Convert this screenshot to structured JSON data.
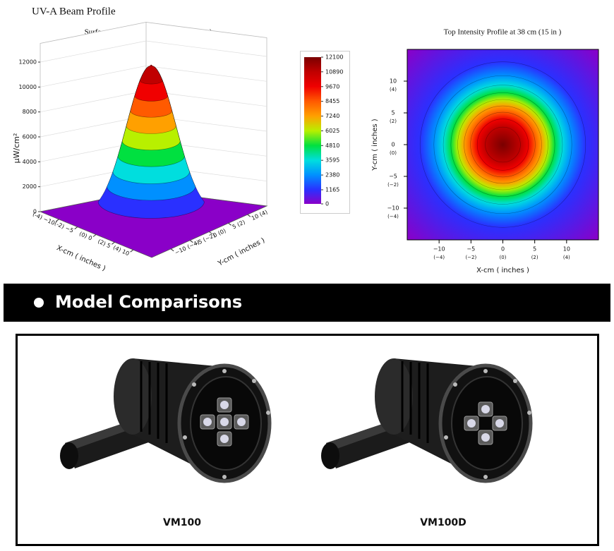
{
  "header": {
    "title": "UV-A Beam Profile"
  },
  "chart_data": [
    {
      "type": "surface",
      "title": "Surface Contour Profile at 38 cm (15 in )",
      "zlabel": "μW/cm²",
      "xlabel": "X-cm ( inches )",
      "ylabel": "Y-cm ( inches )",
      "zlim": [
        0,
        13500
      ],
      "zticks": [
        0,
        2000,
        4000,
        6000,
        8000,
        10000,
        12000
      ],
      "xlim": [
        -15,
        15
      ],
      "ylim": [
        -15,
        15
      ],
      "xticks": [
        {
          "value": -10,
          "label": "(-4) −10"
        },
        {
          "value": -5,
          "label": "(-2) −5"
        },
        {
          "value": 0,
          "label": "(0) 0"
        },
        {
          "value": 5,
          "label": "(2) 5"
        },
        {
          "value": 10,
          "label": "(4) 10"
        }
      ],
      "yticks": [
        {
          "value": -10,
          "label": "−10 (−4)"
        },
        {
          "value": -5,
          "label": "−5 (−2)"
        },
        {
          "value": 0,
          "label": "0 (0)"
        },
        {
          "value": 5,
          "label": "5 (2)"
        },
        {
          "value": 10,
          "label": "10 (4)"
        }
      ],
      "peak": 12100,
      "sigma": 6,
      "colorbar": {
        "levels": [
          0,
          1165,
          2380,
          3595,
          4810,
          6025,
          7240,
          8455,
          9670,
          10890,
          12100
        ],
        "colors": [
          "#8a00c8",
          "#2a30ff",
          "#0090ff",
          "#00dede",
          "#00e040",
          "#b8f000",
          "#ffa000",
          "#ff5a00",
          "#f00000",
          "#c00000",
          "#7a0000"
        ]
      }
    },
    {
      "type": "heatmap",
      "title": "Top Intensity Profile at 38 cm (15 in )",
      "xlabel": "X-cm ( inches )",
      "ylabel": "Y-cm ( inches )",
      "xlim": [
        -15,
        15
      ],
      "ylim": [
        -15,
        15
      ],
      "xticks": [
        {
          "value": -10,
          "label": "−10"
        },
        {
          "value": -5,
          "label": "−5"
        },
        0,
        5,
        10
      ],
      "xtick_inches": [
        "(−4)",
        "(−2)",
        "(0)",
        "(2)",
        "(4)"
      ],
      "yticks": [
        {
          "value": -10,
          "label": "−10"
        },
        {
          "value": -5,
          "label": "−5"
        },
        0,
        5,
        10
      ],
      "ytick_inches": [
        "(−4)",
        "(−2)",
        "(0)",
        "(2)",
        "(4)"
      ],
      "peak": 12100,
      "sigma": 6
    }
  ],
  "banner": {
    "title": "Model Comparisons"
  },
  "products": [
    {
      "name": "VM100"
    },
    {
      "name": "VM100D"
    }
  ]
}
